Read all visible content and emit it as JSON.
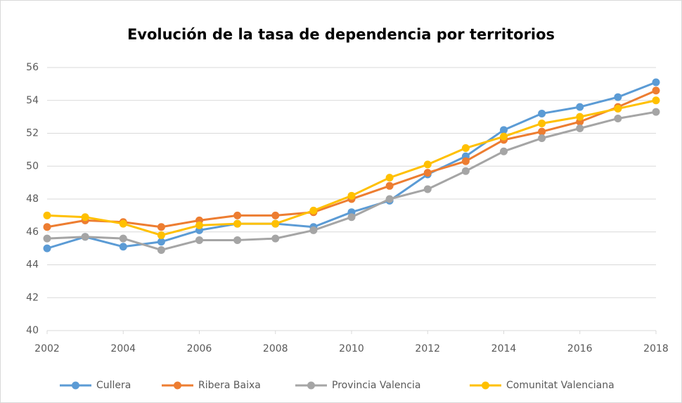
{
  "chart_data": {
    "type": "line",
    "title": "Evolución de la tasa de dependencia por territorios",
    "x": [
      2002,
      2003,
      2004,
      2005,
      2006,
      2007,
      2008,
      2009,
      2010,
      2011,
      2012,
      2013,
      2014,
      2015,
      2016,
      2017,
      2018
    ],
    "xlim": [
      2002,
      2018
    ],
    "xticks": [
      2002,
      2004,
      2006,
      2008,
      2010,
      2012,
      2014,
      2016,
      2018
    ],
    "ylim": [
      40,
      56
    ],
    "yticks": [
      40,
      42,
      44,
      46,
      48,
      50,
      52,
      54,
      56
    ],
    "grid": true,
    "legend": "bottom",
    "series": [
      {
        "name": "Cullera",
        "color": "#5b9bd5",
        "values": [
          45.0,
          45.7,
          45.1,
          45.4,
          46.1,
          46.5,
          46.5,
          46.3,
          47.2,
          47.9,
          49.5,
          50.6,
          52.2,
          53.2,
          53.6,
          54.2,
          55.1
        ]
      },
      {
        "name": "Ribera Baixa",
        "color": "#ed7d31",
        "values": [
          46.3,
          46.7,
          46.6,
          46.3,
          46.7,
          47.0,
          47.0,
          47.2,
          48.0,
          48.8,
          49.6,
          50.3,
          51.6,
          52.1,
          52.7,
          53.6,
          54.6
        ]
      },
      {
        "name": "Provincia Valencia",
        "color": "#a5a5a5",
        "values": [
          45.6,
          45.7,
          45.6,
          44.9,
          45.5,
          45.5,
          45.6,
          46.1,
          46.9,
          48.0,
          48.6,
          49.7,
          50.9,
          51.7,
          52.3,
          52.9,
          53.3
        ]
      },
      {
        "name": "Comunitat Valenciana",
        "color": "#ffc000",
        "values": [
          47.0,
          46.9,
          46.5,
          45.8,
          46.4,
          46.5,
          46.5,
          47.3,
          48.2,
          49.3,
          50.1,
          51.1,
          51.8,
          52.6,
          53.0,
          53.5,
          54.0
        ]
      }
    ]
  }
}
